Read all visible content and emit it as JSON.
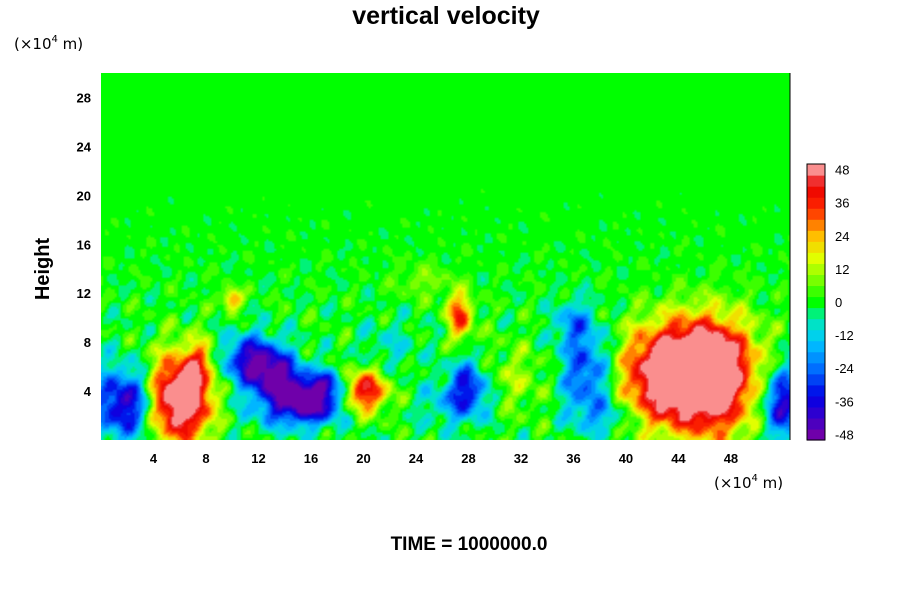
{
  "chart_data": {
    "type": "heatmap",
    "title": "vertical velocity",
    "ylabel": "Height",
    "x_unit": {
      "prefix": "(×10",
      "exp": "4",
      "suffix": " m)"
    },
    "y_unit": {
      "prefix": "(×10",
      "exp": "4",
      "suffix": " m)"
    },
    "xlim": [
      0,
      52.5
    ],
    "ylim": [
      0,
      30
    ],
    "x_ticks": [
      4,
      8,
      12,
      16,
      20,
      24,
      28,
      32,
      36,
      40,
      44,
      48
    ],
    "y_ticks": [
      4,
      8,
      12,
      16,
      20,
      24,
      28
    ],
    "colorbar": {
      "range": [
        -50,
        50
      ],
      "ticks": [
        48,
        36,
        24,
        12,
        0,
        -12,
        -24,
        -36,
        -48
      ],
      "levels": 25
    },
    "features": [
      {
        "x": 2.0,
        "y": 3.0,
        "sx": 1.8,
        "sy": 2.0,
        "amp": -44
      },
      {
        "x": 5.5,
        "y": 3.3,
        "sx": 1.6,
        "sy": 2.4,
        "amp": 60
      },
      {
        "x": 7.3,
        "y": 4.0,
        "sx": 1.1,
        "sy": 2.6,
        "amp": 22
      },
      {
        "x": 7.5,
        "y": 6.5,
        "sx": 0.7,
        "sy": 1.0,
        "amp": 15
      },
      {
        "x": 11.5,
        "y": 6.5,
        "sx": 1.5,
        "sy": 1.4,
        "amp": -42
      },
      {
        "x": 13.5,
        "y": 5.0,
        "sx": 1.3,
        "sy": 1.4,
        "amp": -40
      },
      {
        "x": 16.2,
        "y": 3.3,
        "sx": 1.6,
        "sy": 1.2,
        "amp": -50
      },
      {
        "x": 17.5,
        "y": 4.8,
        "sx": 0.9,
        "sy": 0.8,
        "amp": -20
      },
      {
        "x": 20.0,
        "y": 4.0,
        "sx": 1.3,
        "sy": 1.2,
        "amp": 44
      },
      {
        "x": 10.0,
        "y": 11.5,
        "sx": 0.5,
        "sy": 0.6,
        "amp": 30
      },
      {
        "x": 27.3,
        "y": 10.5,
        "sx": 0.7,
        "sy": 1.2,
        "amp": 30
      },
      {
        "x": 27.5,
        "y": 9.0,
        "sx": 0.6,
        "sy": 1.0,
        "amp": 12
      },
      {
        "x": 28.0,
        "y": 4.5,
        "sx": 1.0,
        "sy": 1.5,
        "amp": -30
      },
      {
        "x": 27.0,
        "y": 3.0,
        "sx": 1.8,
        "sy": 1.3,
        "amp": -15
      },
      {
        "x": 37.0,
        "y": 5.5,
        "sx": 1.4,
        "sy": 2.5,
        "amp": -30
      },
      {
        "x": 36.0,
        "y": 9.5,
        "sx": 1.0,
        "sy": 1.2,
        "amp": -18
      },
      {
        "x": 38.5,
        "y": 2.0,
        "sx": 1.5,
        "sy": 1.0,
        "amp": -14
      },
      {
        "x": 43.0,
        "y": 4.5,
        "sx": 2.4,
        "sy": 2.6,
        "amp": 42
      },
      {
        "x": 46.8,
        "y": 4.8,
        "sx": 2.2,
        "sy": 3.2,
        "amp": 52
      },
      {
        "x": 44.5,
        "y": 7.0,
        "sx": 3.0,
        "sy": 2.3,
        "amp": 30
      },
      {
        "x": 52.0,
        "y": 3.0,
        "sx": 1.1,
        "sy": 2.0,
        "amp": -40
      },
      {
        "x": 14.0,
        "y": 2.5,
        "sx": 2.0,
        "sy": 1.2,
        "amp": -18
      },
      {
        "x": 22.0,
        "y": 7.5,
        "sx": 1.5,
        "sy": 1.5,
        "amp": -8
      },
      {
        "x": 31.5,
        "y": 5.0,
        "sx": 2.0,
        "sy": 2.0,
        "amp": 10
      },
      {
        "x": 24.5,
        "y": 13.0,
        "sx": 1.5,
        "sy": 1.0,
        "amp": 8
      }
    ]
  },
  "footer": {
    "time_label": "TIME = 1000000.0"
  }
}
